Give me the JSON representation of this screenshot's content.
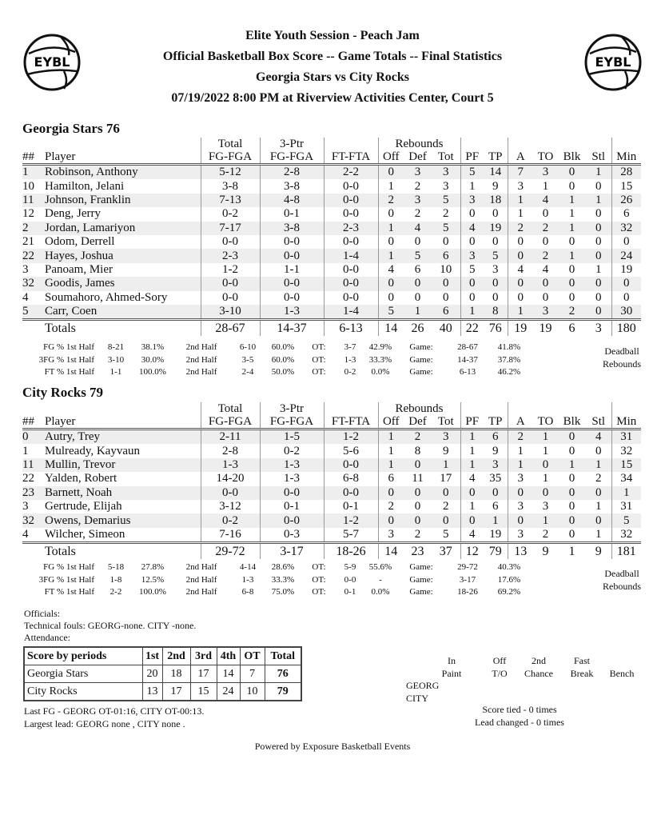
{
  "header": {
    "line1": "Elite Youth Session - Peach Jam",
    "line2": "Official Basketball Box Score -- Game Totals -- Final Statistics",
    "line3": "Georgia Stars vs City Rocks",
    "line4": "07/19/2022 8:00 PM at Riverview Activities Center, Court 5",
    "logo_text": "EYBL"
  },
  "columns": {
    "group_total": "Total",
    "group_3ptr": "3-Ptr",
    "group_rebounds": "Rebounds",
    "num": "##",
    "player": "Player",
    "fg": "FG-FGA",
    "tp3": "FG-FGA",
    "ft": "FT-FTA",
    "off": "Off",
    "def": "Def",
    "tot": "Tot",
    "pf": "PF",
    "tp": "TP",
    "a": "A",
    "to": "TO",
    "blk": "Blk",
    "stl": "Stl",
    "min": "Min"
  },
  "teams": [
    {
      "title": "Georgia Stars 76",
      "players": [
        [
          "1",
          "Robinson, Anthony",
          "5-12",
          "2-8",
          "2-2",
          "0",
          "3",
          "3",
          "5",
          "14",
          "7",
          "3",
          "0",
          "1",
          "28"
        ],
        [
          "10",
          "Hamilton, Jelani",
          "3-8",
          "3-8",
          "0-0",
          "1",
          "2",
          "3",
          "1",
          "9",
          "3",
          "1",
          "0",
          "0",
          "15"
        ],
        [
          "11",
          "Johnson, Franklin",
          "7-13",
          "4-8",
          "0-0",
          "2",
          "3",
          "5",
          "3",
          "18",
          "1",
          "4",
          "1",
          "1",
          "26"
        ],
        [
          "12",
          "Deng, Jerry",
          "0-2",
          "0-1",
          "0-0",
          "0",
          "2",
          "2",
          "0",
          "0",
          "1",
          "0",
          "1",
          "0",
          "6"
        ],
        [
          "2",
          "Jordan, Lamariyon",
          "7-17",
          "3-8",
          "2-3",
          "1",
          "4",
          "5",
          "4",
          "19",
          "2",
          "2",
          "1",
          "0",
          "32"
        ],
        [
          "21",
          "Odom, Derrell",
          "0-0",
          "0-0",
          "0-0",
          "0",
          "0",
          "0",
          "0",
          "0",
          "0",
          "0",
          "0",
          "0",
          "0"
        ],
        [
          "22",
          "Hayes, Joshua",
          "2-3",
          "0-0",
          "1-4",
          "1",
          "5",
          "6",
          "3",
          "5",
          "0",
          "2",
          "1",
          "0",
          "24"
        ],
        [
          "3",
          "Panoam, Mier",
          "1-2",
          "1-1",
          "0-0",
          "4",
          "6",
          "10",
          "5",
          "3",
          "4",
          "4",
          "0",
          "1",
          "19"
        ],
        [
          "32",
          "Goodis, James",
          "0-0",
          "0-0",
          "0-0",
          "0",
          "0",
          "0",
          "0",
          "0",
          "0",
          "0",
          "0",
          "0",
          "0"
        ],
        [
          "4",
          "Soumahoro, Ahmed-Sory",
          "0-0",
          "0-0",
          "0-0",
          "0",
          "0",
          "0",
          "0",
          "0",
          "0",
          "0",
          "0",
          "0",
          "0"
        ],
        [
          "5",
          "Carr, Coen",
          "3-10",
          "1-3",
          "1-4",
          "5",
          "1",
          "6",
          "1",
          "8",
          "1",
          "3",
          "2",
          "0",
          "30"
        ]
      ],
      "totals": [
        "",
        "Totals",
        "28-67",
        "14-37",
        "6-13",
        "14",
        "26",
        "40",
        "22",
        "76",
        "19",
        "19",
        "6",
        "3",
        "180"
      ],
      "shooting": [
        [
          "FG % 1st Half",
          "8-21",
          "38.1%",
          "2nd Half",
          "6-10",
          "60.0%",
          "OT:",
          "3-7",
          "42.9%",
          "Game:",
          "28-67",
          "41.8%"
        ],
        [
          "3FG % 1st Half",
          "3-10",
          "30.0%",
          "2nd Half",
          "3-5",
          "60.0%",
          "OT:",
          "1-3",
          "33.3%",
          "Game:",
          "14-37",
          "37.8%"
        ],
        [
          "FT % 1st Half",
          "1-1",
          "100.0%",
          "2nd Half",
          "2-4",
          "50.0%",
          "OT:",
          "0-2",
          "0.0%",
          "Game:",
          "6-13",
          "46.2%"
        ]
      ],
      "deadball": "Deadball Rebounds"
    },
    {
      "title": "City Rocks 79",
      "players": [
        [
          "0",
          "Autry, Trey",
          "2-11",
          "1-5",
          "1-2",
          "1",
          "2",
          "3",
          "1",
          "6",
          "2",
          "1",
          "0",
          "4",
          "31"
        ],
        [
          "1",
          "Mulready, Kayvaun",
          "2-8",
          "0-2",
          "5-6",
          "1",
          "8",
          "9",
          "1",
          "9",
          "1",
          "1",
          "0",
          "0",
          "32"
        ],
        [
          "11",
          "Mullin, Trevor",
          "1-3",
          "1-3",
          "0-0",
          "1",
          "0",
          "1",
          "1",
          "3",
          "1",
          "0",
          "1",
          "1",
          "15"
        ],
        [
          "22",
          "Yalden, Robert",
          "14-20",
          "1-3",
          "6-8",
          "6",
          "11",
          "17",
          "4",
          "35",
          "3",
          "1",
          "0",
          "2",
          "34"
        ],
        [
          "23",
          "Barnett, Noah",
          "0-0",
          "0-0",
          "0-0",
          "0",
          "0",
          "0",
          "0",
          "0",
          "0",
          "0",
          "0",
          "0",
          "1"
        ],
        [
          "3",
          "Gertrude, Elijah",
          "3-12",
          "0-1",
          "0-1",
          "2",
          "0",
          "2",
          "1",
          "6",
          "3",
          "3",
          "0",
          "1",
          "31"
        ],
        [
          "32",
          "Owens, Demarius",
          "0-2",
          "0-0",
          "1-2",
          "0",
          "0",
          "0",
          "0",
          "1",
          "0",
          "1",
          "0",
          "0",
          "5"
        ],
        [
          "4",
          "Wilcher, Simeon",
          "7-16",
          "0-3",
          "5-7",
          "3",
          "2",
          "5",
          "4",
          "19",
          "3",
          "2",
          "0",
          "1",
          "32"
        ]
      ],
      "totals": [
        "",
        "Totals",
        "29-72",
        "3-17",
        "18-26",
        "14",
        "23",
        "37",
        "12",
        "79",
        "13",
        "9",
        "1",
        "9",
        "181"
      ],
      "shooting": [
        [
          "FG % 1st Half",
          "5-18",
          "27.8%",
          "2nd Half",
          "4-14",
          "28.6%",
          "OT:",
          "5-9",
          "55.6%",
          "Game:",
          "29-72",
          "40.3%"
        ],
        [
          "3FG % 1st Half",
          "1-8",
          "12.5%",
          "2nd Half",
          "1-3",
          "33.3%",
          "OT:",
          "0-0",
          "-",
          "Game:",
          "3-17",
          "17.6%"
        ],
        [
          "FT % 1st Half",
          "2-2",
          "100.0%",
          "2nd Half",
          "6-8",
          "75.0%",
          "OT:",
          "0-1",
          "0.0%",
          "Game:",
          "18-26",
          "69.2%"
        ]
      ],
      "deadball": "Deadball Rebounds"
    }
  ],
  "notes": {
    "officials": "Officials:",
    "technicals": "Technical fouls: GEORG-none. CITY -none.",
    "attendance": "Attendance:",
    "last_fg": "Last FG - GEORG OT-01:16, CITY OT-00:13.",
    "largest_lead": "Largest lead: GEORG none , CITY none ."
  },
  "periods": {
    "header": [
      "Score by periods",
      "1st",
      "2nd",
      "3rd",
      "4th",
      "OT",
      "Total"
    ],
    "rows": [
      [
        "Georgia Stars",
        "20",
        "18",
        "17",
        "14",
        "7",
        "76"
      ],
      [
        "City Rocks",
        "13",
        "17",
        "15",
        "24",
        "10",
        "79"
      ]
    ]
  },
  "team_stats": {
    "headers": [
      [
        "In",
        "Paint"
      ],
      [
        "Off",
        "T/O"
      ],
      [
        "2nd",
        "Chance"
      ],
      [
        "Fast",
        "Break"
      ],
      [
        "",
        "Bench"
      ]
    ],
    "teams": [
      "GEORG",
      "CITY"
    ],
    "score_tied": "Score tied - 0 times",
    "lead_changed": "Lead changed - 0 times"
  },
  "footer": "Powered by Exposure Basketball Events"
}
